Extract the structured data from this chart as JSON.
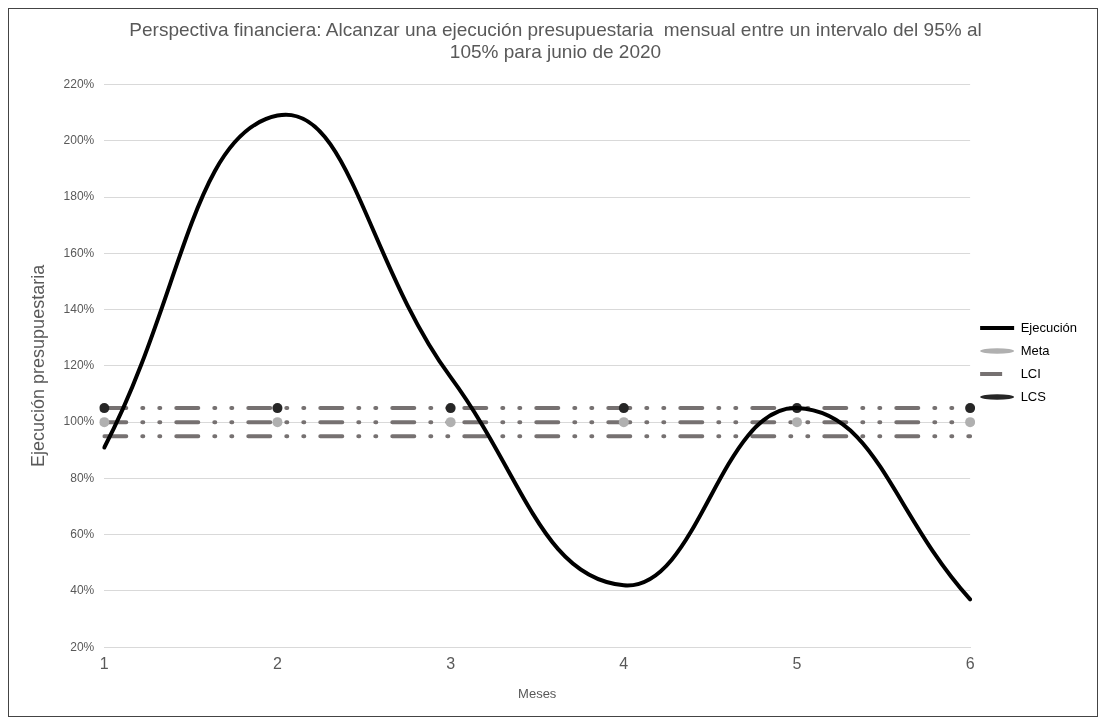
{
  "chart_data": {
    "type": "line",
    "title": "Perspectiva financiera: Alcanzar una ejecución presupuestaria  mensual entre un intervalo del 95% al 105% para junio de 2020",
    "xlabel": "Meses",
    "ylabel": "Ejecución presupuestaria",
    "categories": [
      "1",
      "2",
      "3",
      "4",
      "5",
      "6"
    ],
    "series": [
      {
        "name": "Ejecución",
        "color": "#000000",
        "values": [
          91,
          209,
          116,
          42,
          105,
          37
        ],
        "marker": "none",
        "line_style": "solid"
      },
      {
        "name": "Meta",
        "color": "#767171",
        "values": [
          100,
          100,
          100,
          100,
          100,
          100
        ],
        "marker": "circle",
        "colors": [
          "#b0b0b0",
          "#b0b0b0",
          "#b0b0b0",
          "#b0b0b0",
          "#b0b0b0",
          "#b0b0b0"
        ],
        "line_style": "dashed"
      },
      {
        "name": "LCI",
        "color": "#767171",
        "values": [
          95,
          95,
          95,
          95,
          95,
          95
        ],
        "marker": "none",
        "line_style": "dashed"
      },
      {
        "name": "LCS",
        "color": "#767171",
        "values": [
          105,
          105,
          105,
          105,
          105,
          105
        ],
        "marker": "circle",
        "colors": [
          "#262626",
          "#262626",
          "#262626",
          "#262626",
          "#262626",
          "#262626"
        ],
        "line_style": "dashed"
      }
    ],
    "ylim": [
      20,
      220
    ],
    "yticks": [
      {
        "value": 20,
        "label": "20%"
      },
      {
        "value": 40,
        "label": "40%"
      },
      {
        "value": 60,
        "label": "60%"
      },
      {
        "value": 80,
        "label": "80%"
      },
      {
        "value": 100,
        "label": "100%"
      },
      {
        "value": 120,
        "label": "120%"
      },
      {
        "value": 140,
        "label": "140%"
      },
      {
        "value": 160,
        "label": "160%"
      },
      {
        "value": 180,
        "label": "180%"
      },
      {
        "value": 200,
        "label": "200%"
      },
      {
        "value": 220,
        "label": "220%"
      }
    ],
    "grid": "y",
    "legend": "right"
  }
}
